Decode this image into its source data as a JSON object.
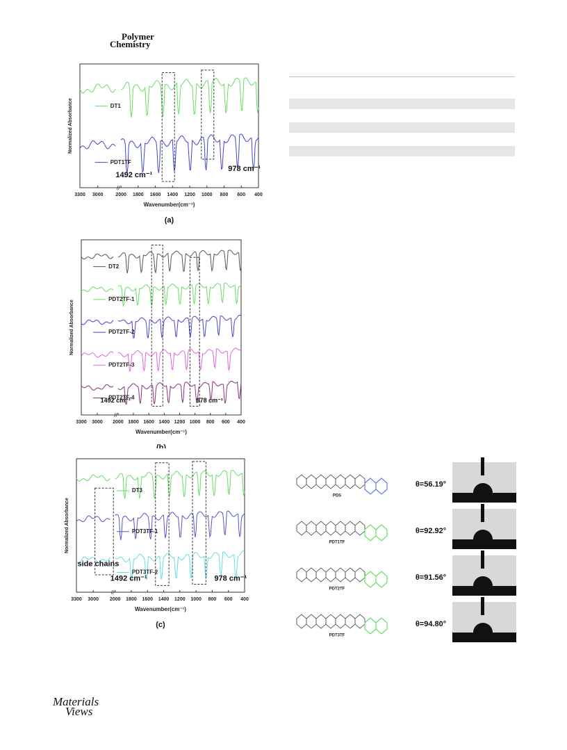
{
  "header": {
    "line1": "Polymer",
    "line2": "Chemistry"
  },
  "figures": [
    {
      "caption": "(a)",
      "y_label": "Normalized Absorbance",
      "x_label": "Wavenumber(cm⁻¹)",
      "x_ticks": [
        "3300",
        "3000",
        "2000",
        "1800",
        "1600",
        "1400",
        "1200",
        "1000",
        "800",
        "600",
        "400"
      ],
      "series": [
        {
          "name": "DT1",
          "color": "#66dd66"
        },
        {
          "name": "PDT1TF",
          "color": "#4444cc"
        }
      ],
      "annotations": [
        "1492 cm⁻¹",
        "978 cm⁻¹"
      ]
    },
    {
      "caption": "(b)",
      "y_label": "Normalized Absorbance",
      "x_label": "Wavenumber(cm⁻¹)",
      "x_ticks": [
        "3300",
        "3000",
        "2000",
        "1800",
        "1600",
        "1400",
        "1200",
        "1000",
        "800",
        "600",
        "400"
      ],
      "series": [
        {
          "name": "DT2",
          "color": "#555555"
        },
        {
          "name": "PDT2TF-1",
          "color": "#66dd66"
        },
        {
          "name": "PDT2TF-2",
          "color": "#4444cc"
        },
        {
          "name": "PDT2TF-3",
          "color": "#dd66dd"
        },
        {
          "name": "PDT2TF-4",
          "color": "#883377"
        }
      ],
      "annotations": [
        "1492 cm⁻¹",
        "978 cm⁻¹"
      ]
    },
    {
      "caption": "(c)",
      "y_label": "Normalized Absorbance",
      "x_label": "Wavenumber(cm⁻¹)",
      "x_ticks": [
        "3300",
        "3000",
        "2000",
        "1800",
        "1600",
        "1400",
        "1200",
        "1000",
        "800",
        "600",
        "400"
      ],
      "series": [
        {
          "name": "DT3",
          "color": "#66dd66"
        },
        {
          "name": "PDT3TF-1",
          "color": "#5555cc"
        },
        {
          "name": "PDT3TF-2",
          "color": "#66dddd"
        }
      ],
      "annotations": [
        "side chains",
        "1492 cm⁻¹",
        "978 cm⁻¹"
      ]
    }
  ],
  "contact_angle": {
    "rows": [
      {
        "polymer": "PDS",
        "angle": "θ=56.19°"
      },
      {
        "polymer": "PDT1TF",
        "angle": "θ=92.92°"
      },
      {
        "polymer": "PDT2TF",
        "angle": "θ=91.56°"
      },
      {
        "polymer": "PDT3TF",
        "angle": "θ=94.80°"
      }
    ]
  },
  "footer": {
    "logo_line1": "Materials",
    "logo_line2": "Views"
  }
}
